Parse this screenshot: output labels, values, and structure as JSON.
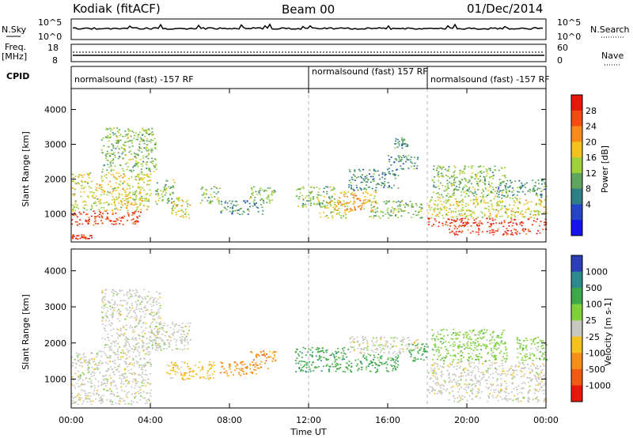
{
  "header": {
    "station": "Kodiak (fitACF)",
    "beam": "Beam 00",
    "date": "01/Dec/2014"
  },
  "top_panels": {
    "nsky_label": "N.Sky",
    "nsky_ticks": [
      "10^5",
      "10^0"
    ],
    "nsearch_label": "N.Search",
    "nsearch_ticks": [
      "10^5",
      "10^0"
    ],
    "freq_label_1": "Freq.",
    "freq_label_2": "[MHz]",
    "freq_ticks": [
      "18",
      "8"
    ],
    "nave_label": "Nave",
    "nave_ticks": [
      "60",
      "0"
    ],
    "cpid_label": "CPID",
    "cpid_segments": [
      {
        "label": "normalsound (fast) -157 RF",
        "start_hour": 0
      },
      {
        "label": "normalsound (fast) 157 RF",
        "start_hour": 12
      },
      {
        "label": "normalsound (fast) -157 RF",
        "start_hour": 18
      }
    ]
  },
  "power_colorbar": {
    "title": "Power [dB]",
    "ticks": [
      "28",
      "24",
      "20",
      "16",
      "12",
      "8",
      "4"
    ],
    "colors": [
      "#e8160b",
      "#f74b12",
      "#f88c1a",
      "#f4c21c",
      "#9fd13a",
      "#5ea65d",
      "#2f7f86",
      "#2445c8",
      "#1414f0"
    ]
  },
  "velocity_colorbar": {
    "title": "Velocity [m s-1]",
    "ticks": [
      "1000",
      "500",
      "100",
      "25",
      "-25",
      "-100",
      "-500",
      "-1000"
    ],
    "colors": [
      "#2a3fb8",
      "#2c8a8a",
      "#3fa84a",
      "#7fd13a",
      "#c8c8c0",
      "#f4c21c",
      "#f7901a",
      "#f05a12",
      "#e8160b"
    ]
  },
  "chart_data": [
    {
      "type": "heatmap",
      "title": "",
      "xlabel": "",
      "ylabel": "Slant Range [km]",
      "xlim": [
        0,
        24
      ],
      "ylim": [
        200,
        4600
      ],
      "yticks": [
        1000,
        2000,
        3000,
        4000
      ],
      "colorbar": "Power [dB]",
      "clim": [
        0,
        30
      ],
      "regions": [
        {
          "t0": 0.0,
          "t1": 3.5,
          "r0": 700,
          "r1": 1100,
          "value": 28
        },
        {
          "t0": 0.0,
          "t1": 4.0,
          "r0": 1100,
          "r1": 2200,
          "value": 14
        },
        {
          "t0": 1.5,
          "t1": 4.3,
          "r0": 2200,
          "r1": 3500,
          "value": 10
        },
        {
          "t0": 0.0,
          "t1": 1.0,
          "r0": 300,
          "r1": 420,
          "value": 26
        },
        {
          "t0": 4.2,
          "t1": 5.2,
          "r0": 1300,
          "r1": 2000,
          "value": 12
        },
        {
          "t0": 5.0,
          "t1": 6.0,
          "r0": 900,
          "r1": 1500,
          "value": 14
        },
        {
          "t0": 6.5,
          "t1": 7.5,
          "r0": 1300,
          "r1": 1800,
          "value": 10
        },
        {
          "t0": 7.5,
          "t1": 9.7,
          "r0": 1000,
          "r1": 1400,
          "value": 8
        },
        {
          "t0": 9.0,
          "t1": 10.3,
          "r0": 1300,
          "r1": 1800,
          "value": 12
        },
        {
          "t0": 11.3,
          "t1": 13.3,
          "r0": 1200,
          "r1": 1800,
          "value": 10
        },
        {
          "t0": 12.5,
          "t1": 14.0,
          "r0": 900,
          "r1": 1400,
          "value": 14
        },
        {
          "t0": 13.4,
          "t1": 15.5,
          "r0": 1100,
          "r1": 1700,
          "value": 20
        },
        {
          "t0": 14.0,
          "t1": 16.5,
          "r0": 1700,
          "r1": 2300,
          "value": 8
        },
        {
          "t0": 15.0,
          "t1": 17.7,
          "r0": 900,
          "r1": 1400,
          "value": 10
        },
        {
          "t0": 16.0,
          "t1": 17.5,
          "r0": 2300,
          "r1": 2700,
          "value": 6
        },
        {
          "t0": 16.3,
          "t1": 17.0,
          "r0": 2900,
          "r1": 3200,
          "value": 6
        },
        {
          "t0": 18.0,
          "t1": 24.0,
          "r0": 650,
          "r1": 900,
          "value": 27
        },
        {
          "t0": 18.0,
          "t1": 24.0,
          "r0": 900,
          "r1": 1500,
          "value": 15
        },
        {
          "t0": 18.2,
          "t1": 22.0,
          "r0": 1500,
          "r1": 2400,
          "value": 11
        },
        {
          "t0": 21.5,
          "t1": 24.0,
          "r0": 1500,
          "r1": 2000,
          "value": 6
        },
        {
          "t0": 19.0,
          "t1": 24.0,
          "r0": 420,
          "r1": 600,
          "value": 25
        }
      ]
    },
    {
      "type": "heatmap",
      "title": "",
      "xlabel": "Time UT",
      "ylabel": "Slant Range [km]",
      "xlim": [
        0,
        24
      ],
      "ylim": [
        200,
        4600
      ],
      "xticks": [
        "00:00",
        "04:00",
        "08:00",
        "12:00",
        "16:00",
        "20:00",
        "00:00"
      ],
      "yticks": [
        1000,
        2000,
        3000,
        4000
      ],
      "colorbar": "Velocity [m s-1]",
      "clim": [
        -1000,
        1000
      ],
      "regions": [
        {
          "t0": 0.0,
          "t1": 4.0,
          "r0": 300,
          "r1": 1800,
          "value": 0
        },
        {
          "t0": 1.5,
          "t1": 4.5,
          "r0": 1800,
          "r1": 3500,
          "value": 0
        },
        {
          "t0": 4.0,
          "t1": 6.0,
          "r0": 1800,
          "r1": 2600,
          "value": 0
        },
        {
          "t0": 4.8,
          "t1": 7.2,
          "r0": 1000,
          "r1": 1500,
          "value": -100
        },
        {
          "t0": 7.5,
          "t1": 9.5,
          "r0": 1100,
          "r1": 1500,
          "value": -300
        },
        {
          "t0": 9.0,
          "t1": 10.3,
          "r0": 1300,
          "r1": 1800,
          "value": -200
        },
        {
          "t0": 11.3,
          "t1": 14.0,
          "r0": 1200,
          "r1": 1900,
          "value": 200
        },
        {
          "t0": 14.0,
          "t1": 16.5,
          "r0": 1200,
          "r1": 1700,
          "value": 150
        },
        {
          "t0": 14.0,
          "t1": 17.5,
          "r0": 1700,
          "r1": 2200,
          "value": 0
        },
        {
          "t0": 17.0,
          "t1": 18.0,
          "r0": 1500,
          "r1": 2000,
          "value": 100
        },
        {
          "t0": 18.0,
          "t1": 24.0,
          "r0": 600,
          "r1": 1500,
          "value": 0
        },
        {
          "t0": 18.2,
          "t1": 22.0,
          "r0": 1500,
          "r1": 2400,
          "value": 50
        },
        {
          "t0": 22.5,
          "t1": 24.0,
          "r0": 1500,
          "r1": 2200,
          "value": 80
        },
        {
          "t0": 19.0,
          "t1": 24.0,
          "r0": 380,
          "r1": 560,
          "value": 0
        }
      ]
    }
  ]
}
